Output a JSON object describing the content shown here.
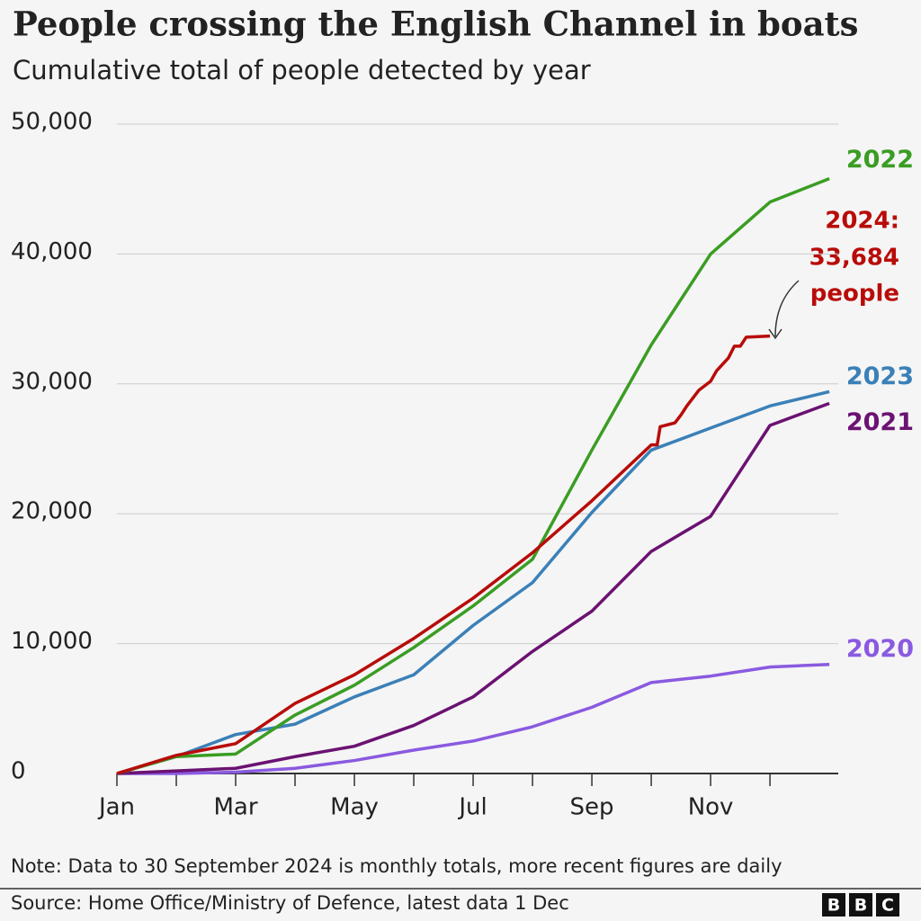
{
  "chart_data": {
    "type": "line",
    "title": "People crossing the English Channel in boats",
    "subtitle": "Cumulative total of people detected by year",
    "x": [
      0,
      1,
      2,
      3,
      4,
      5,
      6,
      7,
      8,
      9,
      10,
      11,
      12
    ],
    "xlim": [
      0,
      12.15
    ],
    "xticks": [
      {
        "value": 0,
        "label": "Jan"
      },
      {
        "value": 2,
        "label": "Mar"
      },
      {
        "value": 4,
        "label": "May"
      },
      {
        "value": 6,
        "label": "Jul"
      },
      {
        "value": 8,
        "label": "Sep"
      },
      {
        "value": 10,
        "label": "Nov"
      }
    ],
    "xminorticks": [
      1,
      3,
      5,
      7,
      9,
      11
    ],
    "ylim": [
      0,
      50000
    ],
    "yticks": [
      0,
      {
        "value": 10000,
        "label": "10,000"
      },
      {
        "value": 20000,
        "label": "20,000"
      },
      {
        "value": 30000,
        "label": "30,000"
      },
      {
        "value": 40000,
        "label": "40,000"
      },
      {
        "value": 50000,
        "label": "50,000"
      }
    ],
    "grid": true,
    "series": [
      {
        "name": "2020",
        "color": "#8a5ae0",
        "values": [
          0,
          0,
          100,
          400,
          1000,
          1800,
          2500,
          3600,
          5100,
          7000,
          7500,
          8200,
          8400
        ]
      },
      {
        "name": "2021",
        "color": "#6b1272",
        "values": [
          0,
          200,
          400,
          1300,
          2100,
          3700,
          5900,
          9400,
          12500,
          17100,
          19800,
          26800,
          28500
        ]
      },
      {
        "name": "2023",
        "color": "#3b80b8",
        "values": [
          0,
          1300,
          3000,
          3800,
          5900,
          7600,
          11400,
          14700,
          20100,
          24900,
          26600,
          28300,
          29400
        ]
      },
      {
        "name": "2022",
        "color": "#3a9d23",
        "values": [
          0,
          1300,
          1500,
          4500,
          6800,
          9700,
          12900,
          16500,
          24900,
          33000,
          40000,
          44000,
          45800
        ]
      },
      {
        "name": "2024",
        "color": "#b80c09",
        "x": [
          0,
          1,
          2,
          3,
          4,
          5,
          6,
          7,
          8,
          9,
          9.1,
          9.15,
          9.4,
          9.5,
          9.6,
          9.8,
          10.0,
          10.1,
          10.3,
          10.4,
          10.5,
          10.6,
          11.0
        ],
        "values": [
          0,
          1400,
          2300,
          5400,
          7600,
          10400,
          13500,
          17000,
          21000,
          25300,
          25300,
          26700,
          27000,
          27600,
          28300,
          29500,
          30200,
          31000,
          32000,
          32900,
          32900,
          33600,
          33684
        ]
      }
    ],
    "annotation": [
      "2024:",
      "33,684",
      "people"
    ],
    "note": "Note: Data to 30 September 2024 is monthly totals, more recent figures are daily",
    "source": "Source: Home Office/Ministry of Defence, latest data 1 Dec",
    "logo": [
      "B",
      "B",
      "C"
    ]
  }
}
